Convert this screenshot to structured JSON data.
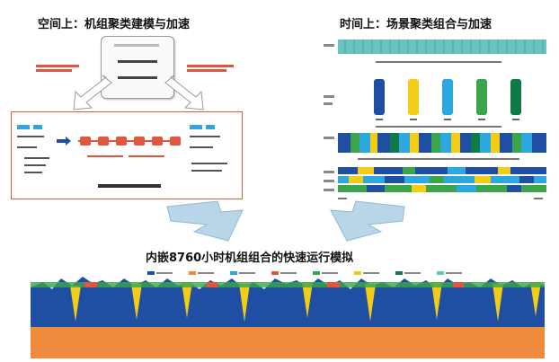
{
  "left_title": "空间上：机组聚类建模与加速",
  "right_title": "时间上：场景聚类组合与加速",
  "center_title": "内嵌8760小时机组组合的快速运行模拟",
  "colors": {
    "red_accent": "#e0563f",
    "teal": "#69c4bf",
    "dark_blue": "#1f4fa3",
    "yellow": "#f3cc16",
    "light_blue": "#2ca7e0",
    "green": "#3aa54a",
    "dark_green": "#0f7a48",
    "orange_base": "#f08a3c",
    "arrow_blue": "#b9d6e8"
  }
}
